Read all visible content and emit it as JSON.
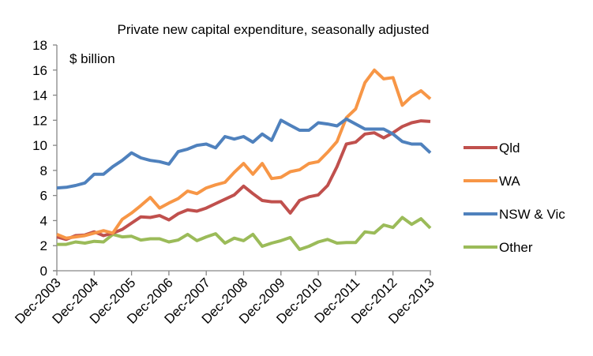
{
  "chart_data": {
    "type": "line",
    "title": "Private new capital expenditure, seasonally adjusted",
    "unit_annotation": "$ billion",
    "xlabel": "",
    "ylabel": "",
    "ylim": [
      0,
      18
    ],
    "yticks": [
      0,
      2,
      4,
      6,
      8,
      10,
      12,
      14,
      16,
      18
    ],
    "xtick_labels": [
      "Dec-2003",
      "Dec-2004",
      "Dec-2005",
      "Dec-2006",
      "Dec-2007",
      "Dec-2008",
      "Dec-2009",
      "Dec-2010",
      "Dec-2011",
      "Dec-2012",
      "Dec-2013"
    ],
    "x_frequency": "quarterly",
    "x_start": "Dec-2003",
    "x_end": "Dec-2013",
    "grid": false,
    "legend_position": "right",
    "series": [
      {
        "name": "Qld",
        "color": "#C0504D",
        "values": [
          2.7,
          2.5,
          2.8,
          2.85,
          3.1,
          2.8,
          3.0,
          3.3,
          3.8,
          4.3,
          4.25,
          4.4,
          4.05,
          4.55,
          4.85,
          4.75,
          5.0,
          5.35,
          5.7,
          6.05,
          6.75,
          6.15,
          5.6,
          5.5,
          5.5,
          4.6,
          5.6,
          5.9,
          6.05,
          6.8,
          8.3,
          10.1,
          10.25,
          10.9,
          11.0,
          10.6,
          11.0,
          11.5,
          11.8,
          11.95,
          11.9
        ]
      },
      {
        "name": "WA",
        "color": "#F79646",
        "values": [
          2.9,
          2.6,
          2.7,
          2.8,
          3.0,
          3.2,
          3.0,
          4.1,
          4.6,
          5.2,
          5.85,
          5.0,
          5.4,
          5.75,
          6.35,
          6.15,
          6.6,
          6.85,
          7.05,
          7.85,
          8.55,
          7.7,
          8.55,
          7.35,
          7.45,
          7.9,
          8.05,
          8.55,
          8.7,
          9.45,
          10.3,
          12.2,
          12.9,
          15.0,
          16.0,
          15.3,
          15.4,
          13.2,
          13.9,
          14.35,
          13.7
        ]
      },
      {
        "name": "NSW & Vic",
        "color": "#4F81BD",
        "values": [
          6.6,
          6.65,
          6.8,
          7.0,
          7.7,
          7.7,
          8.3,
          8.8,
          9.4,
          9.0,
          8.8,
          8.7,
          8.5,
          9.5,
          9.7,
          10.0,
          10.1,
          9.8,
          10.7,
          10.5,
          10.7,
          10.25,
          10.9,
          10.4,
          12.0,
          11.6,
          11.2,
          11.2,
          11.8,
          11.7,
          11.55,
          12.1,
          11.7,
          11.3,
          11.3,
          11.3,
          10.9,
          10.3,
          10.1,
          10.1,
          9.4
        ]
      },
      {
        "name": "Other",
        "color": "#9BBB59",
        "values": [
          2.1,
          2.1,
          2.3,
          2.2,
          2.35,
          2.3,
          2.9,
          2.7,
          2.75,
          2.45,
          2.55,
          2.55,
          2.3,
          2.45,
          2.9,
          2.4,
          2.7,
          2.95,
          2.2,
          2.6,
          2.4,
          2.9,
          1.95,
          2.2,
          2.4,
          2.65,
          1.7,
          1.95,
          2.3,
          2.5,
          2.2,
          2.25,
          2.25,
          3.1,
          3.0,
          3.65,
          3.45,
          4.25,
          3.7,
          4.15,
          3.4
        ]
      }
    ]
  }
}
